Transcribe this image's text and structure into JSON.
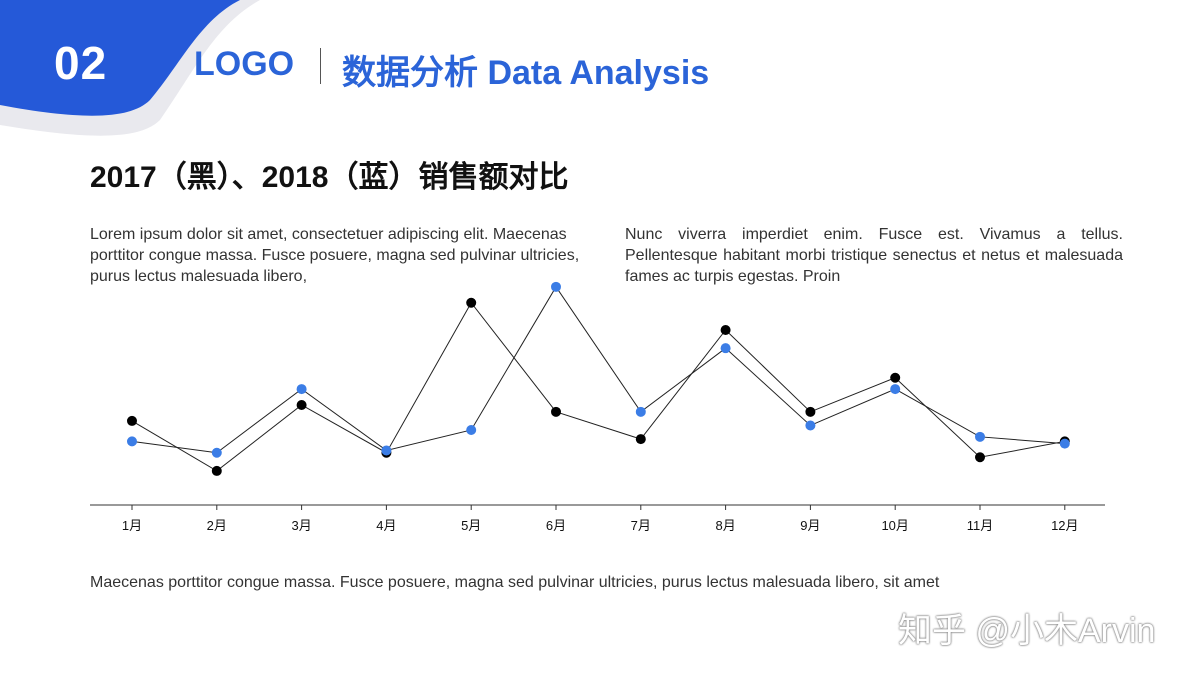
{
  "header": {
    "section_number": "02",
    "logo_text": "LOGO",
    "title": "数据分析 Data Analysis",
    "accent_color": "#2b64d8"
  },
  "chart_title": "2017（黑）、2018（蓝）销售额对比",
  "text": {
    "left_paragraph": "Lorem ipsum dolor sit amet, consectetuer adipiscing elit. Maecenas porttitor congue massa. Fusce posuere, magna sed pulvinar ultricies, purus lectus malesuada libero,",
    "right_paragraph": "Nunc viverra imperdiet enim. Fusce est. Vivamus a tellus. Pellentesque habitant morbi tristique senectus et netus et malesuada fames ac turpis egestas. Proin",
    "footer": "Maecenas porttitor congue massa. Fusce posuere, magna sed pulvinar ultricies, purus lectus malesuada libero, sit amet"
  },
  "watermark": "知乎 @小木Arvin",
  "chart_data": {
    "type": "line",
    "categories": [
      "1月",
      "2月",
      "3月",
      "4月",
      "5月",
      "6月",
      "7月",
      "8月",
      "9月",
      "10月",
      "11月",
      "12月"
    ],
    "series": [
      {
        "color": "#000000",
        "values": [
          48,
          26,
          55,
          34,
          100,
          52,
          40,
          88,
          52,
          67,
          32,
          39
        ]
      },
      {
        "color": "#3b7de6",
        "values": [
          39,
          34,
          62,
          35,
          44,
          107,
          52,
          80,
          46,
          62,
          41,
          38
        ]
      }
    ],
    "ylim": [
      0,
      110
    ],
    "grid": false,
    "legend": "none"
  }
}
